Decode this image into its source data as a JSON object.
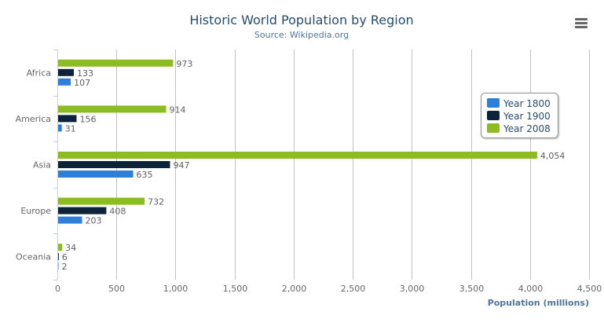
{
  "chart_data": {
    "type": "bar",
    "orientation": "horizontal",
    "title": "Historic World Population by Region",
    "subtitle": "Source: Wikipedia.org",
    "xlabel": "",
    "ylabel": "Population (millions)",
    "categories": [
      "Africa",
      "America",
      "Asia",
      "Europe",
      "Oceania"
    ],
    "series": [
      {
        "name": "Year 1800",
        "color": "#2f7ed8",
        "values": [
          107,
          31,
          635,
          203,
          2
        ]
      },
      {
        "name": "Year 1900",
        "color": "#0d233a",
        "values": [
          133,
          156,
          947,
          408,
          6
        ]
      },
      {
        "name": "Year 2008",
        "color": "#8bbc21",
        "values": [
          973,
          914,
          4054,
          732,
          34
        ]
      }
    ],
    "value_axis": {
      "min": 0,
      "max": 4500,
      "tick_interval": 500,
      "tick_labels": [
        "0",
        "500",
        "1,000",
        "1,500",
        "2,000",
        "2,500",
        "3,000",
        "3,500",
        "4,000",
        "4,500"
      ]
    },
    "grid": true,
    "data_labels": true,
    "legend_placement": "top-right, inside plot"
  },
  "menu": {
    "icon": "hamburger-menu-icon"
  }
}
